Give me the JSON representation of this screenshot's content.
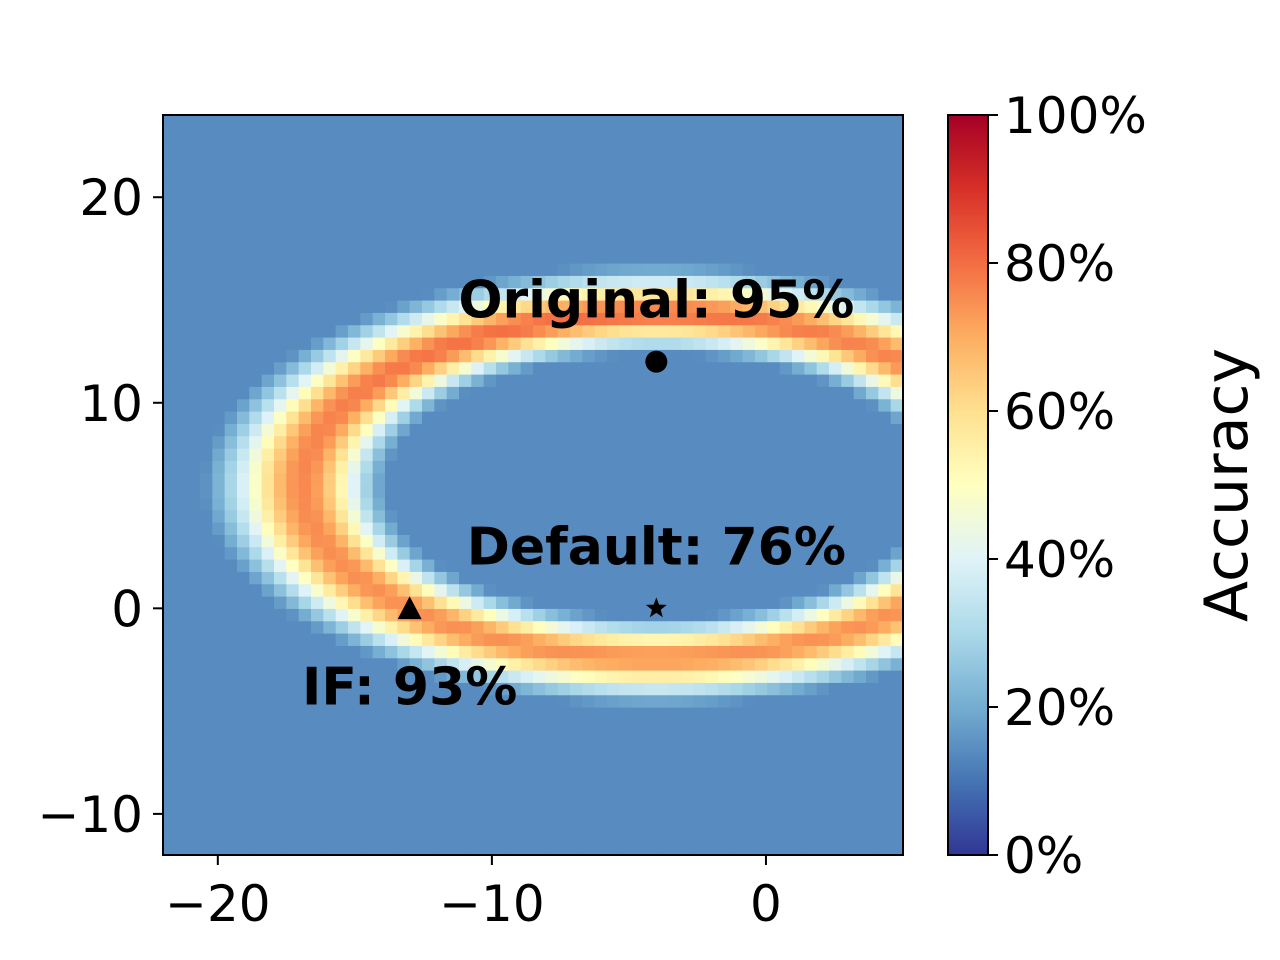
{
  "chart_data": {
    "type": "heatmap",
    "title": "",
    "xlabel": "",
    "ylabel": "",
    "xlim": [
      -22,
      5
    ],
    "ylim": [
      -12,
      24
    ],
    "x_ticks": [
      -20,
      -10,
      0
    ],
    "x_tick_labels": [
      "−20",
      "−10",
      "0"
    ],
    "y_ticks": [
      -10,
      0,
      10,
      20
    ],
    "y_tick_labels": [
      "−10",
      "0",
      "10",
      "20"
    ],
    "grid": 60,
    "colormap": "RdYlBu_r",
    "colormap_stops": [
      "#313695",
      "#4575b4",
      "#74add1",
      "#abd9e9",
      "#e0f3f8",
      "#ffffbf",
      "#fee090",
      "#fdae61",
      "#f46d43",
      "#d73027",
      "#a50026"
    ],
    "value_range": [
      0,
      1
    ],
    "colorbar": {
      "label": "Accuracy",
      "ticks": [
        0,
        0.2,
        0.4,
        0.6,
        0.8,
        1.0
      ],
      "tick_labels": [
        "0%",
        "20%",
        "40%",
        "60%",
        "80%",
        "100%"
      ]
    },
    "markers": [
      {
        "name": "Original",
        "x": -4,
        "y": 12,
        "symbol": "circle",
        "label": "Original: 95%",
        "accuracy": 0.95
      },
      {
        "name": "Default",
        "x": -4,
        "y": 0,
        "symbol": "star",
        "label": "Default: 76%",
        "accuracy": 0.76
      },
      {
        "name": "IF",
        "x": -13,
        "y": 0,
        "symbol": "triangle",
        "label": "IF: 93%",
        "accuracy": 0.93
      }
    ]
  }
}
